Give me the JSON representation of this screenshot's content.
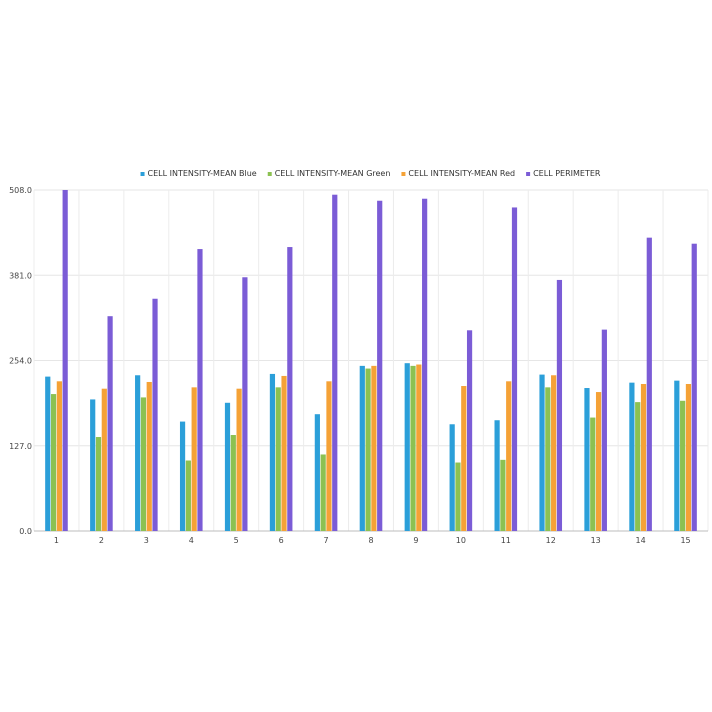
{
  "chart_data": {
    "type": "bar",
    "title": "",
    "xlabel": "",
    "ylabel": "",
    "categories": [
      "1",
      "2",
      "3",
      "4",
      "5",
      "6",
      "7",
      "8",
      "9",
      "10",
      "11",
      "12",
      "13",
      "14",
      "15"
    ],
    "ylim": [
      0,
      508
    ],
    "yticks": [
      "0.0",
      "127.0",
      "254.0",
      "381.0",
      "508.0"
    ],
    "grid": true,
    "legend_position": "top",
    "series": [
      {
        "name": "CELL INTENSITY-MEAN Blue",
        "color": "#2b9fd9",
        "values": [
          230,
          196,
          232,
          163,
          191,
          234,
          174,
          246,
          250,
          159,
          165,
          233,
          213,
          221,
          224
        ]
      },
      {
        "name": "CELL INTENSITY-MEAN Green",
        "color": "#8cc152",
        "values": [
          204,
          140,
          199,
          105,
          143,
          214,
          114,
          242,
          246,
          102,
          106,
          214,
          169,
          192,
          194
        ]
      },
      {
        "name": "CELL INTENSITY-MEAN Red",
        "color": "#f5a236",
        "values": [
          223,
          212,
          222,
          214,
          212,
          231,
          223,
          246,
          248,
          216,
          223,
          232,
          207,
          219,
          219
        ]
      },
      {
        "name": "CELL PERIMETER",
        "color": "#7b5cd6",
        "values": [
          508,
          320,
          346,
          420,
          378,
          423,
          501,
          492,
          495,
          299,
          482,
          374,
          300,
          437,
          428
        ]
      }
    ]
  }
}
